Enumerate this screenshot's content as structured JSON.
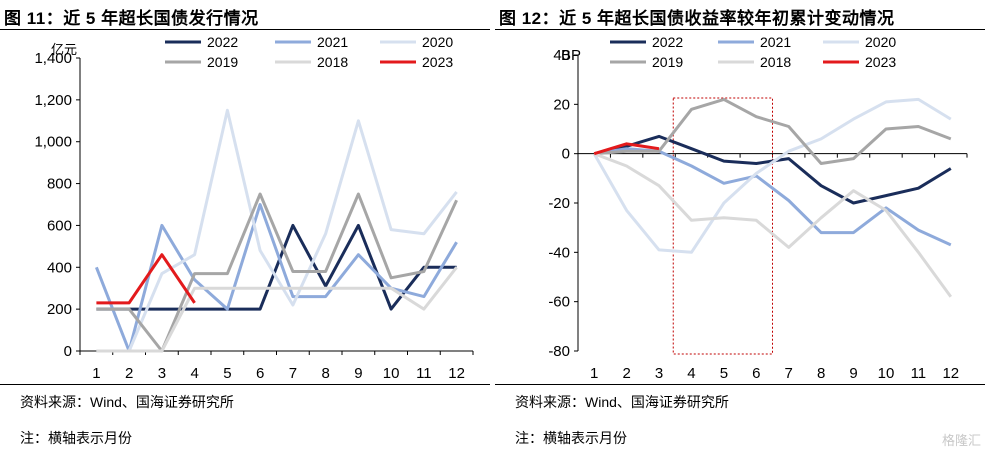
{
  "watermark": "格隆汇",
  "charts": [
    {
      "title": "图 11：近 5 年超长国债发行情况",
      "source": "资料来源：Wind、国海证券研究所",
      "note": "注：横轴表示月份",
      "chart_data": {
        "type": "line",
        "title": "图 11：近 5 年超长国债发行情况",
        "ylabel": "亿元",
        "xlabel": "",
        "x": [
          1,
          2,
          3,
          4,
          5,
          6,
          7,
          8,
          9,
          10,
          11,
          12
        ],
        "xticks": [
          "1",
          "2",
          "3",
          "4",
          "5",
          "6",
          "7",
          "8",
          "9",
          "10",
          "11",
          "12"
        ],
        "ylim": [
          0,
          1400
        ],
        "yticks": [
          0,
          200,
          400,
          600,
          800,
          1000,
          1200,
          1400
        ],
        "yticklabels": [
          "0",
          "200",
          "400",
          "600",
          "800",
          "1,000",
          "1,200",
          "1,400"
        ],
        "legend": "top",
        "series": [
          {
            "name": "2022",
            "color": "#1a2d5a",
            "width": 3,
            "values": [
              200,
              200,
              200,
              200,
              200,
              200,
              600,
              310,
              600,
              200,
              400,
              400
            ]
          },
          {
            "name": "2021",
            "color": "#8eaadb",
            "width": 3,
            "values": [
              400,
              0,
              600,
              340,
              200,
              700,
              260,
              260,
              460,
              300,
              260,
              520
            ]
          },
          {
            "name": "2020",
            "color": "#d6e0ef",
            "width": 3,
            "values": [
              0,
              0,
              370,
              460,
              1150,
              480,
              220,
              560,
              1100,
              580,
              560,
              760
            ]
          },
          {
            "name": "2019",
            "color": "#a6a6a6",
            "width": 3,
            "values": [
              200,
              200,
              0,
              370,
              370,
              750,
              380,
              380,
              750,
              350,
              380,
              720
            ]
          },
          {
            "name": "2018",
            "color": "#d9d9d9",
            "width": 3,
            "values": [
              0,
              0,
              0,
              300,
              300,
              300,
              300,
              300,
              300,
              300,
              200,
              400
            ]
          },
          {
            "name": "2023",
            "color": "#e31a1c",
            "width": 3,
            "values": [
              230,
              230,
              460,
              230,
              null,
              null,
              null,
              null,
              null,
              null,
              null,
              null
            ]
          }
        ]
      }
    },
    {
      "title": "图 12：近 5 年超长国债收益率较年初累计变动情况",
      "source": "资料来源：Wind、国海证券研究所",
      "note": "注：横轴表示月份",
      "chart_data": {
        "type": "line",
        "title": "图 12：近 5 年超长国债收益率较年初累计变动情况",
        "ylabel": "BP",
        "xlabel": "",
        "x": [
          1,
          2,
          3,
          4,
          5,
          6,
          7,
          8,
          9,
          10,
          11,
          12
        ],
        "xticks": [
          "1",
          "2",
          "3",
          "4",
          "5",
          "6",
          "7",
          "8",
          "9",
          "10",
          "11",
          "12"
        ],
        "ylim": [
          -80,
          40
        ],
        "yticks": [
          -80,
          -60,
          -40,
          -20,
          0,
          20,
          40
        ],
        "yticklabels": [
          "-80",
          "-60",
          "-40",
          "-20",
          "0",
          "20",
          "40"
        ],
        "legend": "top",
        "highlight": {
          "x_from": 4,
          "x_to": 6,
          "color": "#c00000",
          "style": "dotted"
        },
        "series": [
          {
            "name": "2022",
            "color": "#1a2d5a",
            "width": 3,
            "values": [
              0,
              3,
              7,
              2,
              -3,
              -4,
              -2,
              -13,
              -20,
              -17,
              -14,
              -6
            ]
          },
          {
            "name": "2021",
            "color": "#8eaadb",
            "width": 3,
            "values": [
              0,
              2,
              1,
              -5,
              -12,
              -9,
              -19,
              -32,
              -32,
              -22,
              -31,
              -37
            ]
          },
          {
            "name": "2020",
            "color": "#d6e0ef",
            "width": 3,
            "values": [
              0,
              -23,
              -39,
              -40,
              -20,
              -8,
              1,
              6,
              14,
              21,
              22,
              14
            ]
          },
          {
            "name": "2019",
            "color": "#a6a6a6",
            "width": 3,
            "values": [
              0,
              1,
              1,
              18,
              22,
              15,
              11,
              -4,
              -2,
              10,
              11,
              6
            ]
          },
          {
            "name": "2018",
            "color": "#d9d9d9",
            "width": 3,
            "values": [
              0,
              -5,
              -13,
              -27,
              -26,
              -27,
              -38,
              -26,
              -15,
              -23,
              -40,
              -58
            ]
          },
          {
            "name": "2023",
            "color": "#e31a1c",
            "width": 3,
            "values": [
              0,
              4,
              2,
              null,
              null,
              null,
              null,
              null,
              null,
              null,
              null,
              null
            ]
          }
        ]
      }
    }
  ]
}
